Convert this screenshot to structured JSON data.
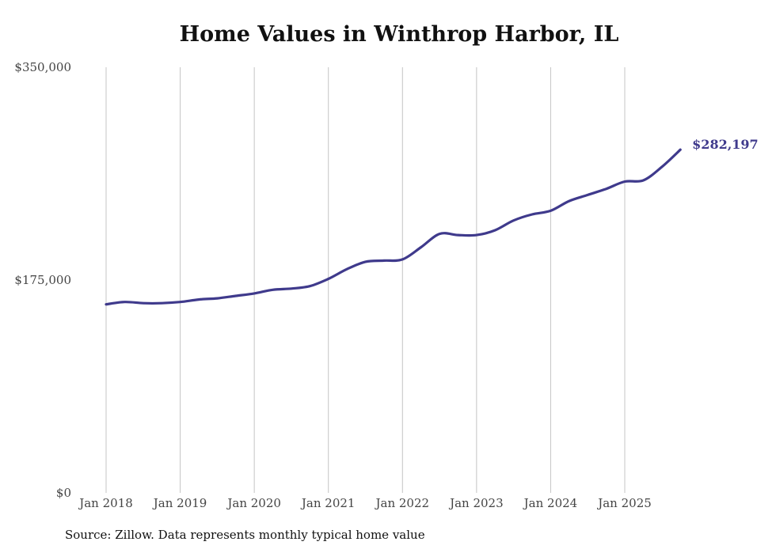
{
  "source_text": "Source: Zillow. Data represents monthly typical home value",
  "colors": {
    "line": "#3f3a8c",
    "grid": "#c4c4c4"
  },
  "chart_data": {
    "type": "line",
    "title": "Home Values in Winthrop Harbor, IL",
    "xlabel": "",
    "ylabel": "",
    "ylim": [
      0,
      350000
    ],
    "y_ticks": [
      0,
      175000,
      350000
    ],
    "y_tick_labels": [
      "$0",
      "$175,000",
      "$350,000"
    ],
    "x_ticks": [
      "2018-01",
      "2019-01",
      "2020-01",
      "2021-01",
      "2022-01",
      "2023-01",
      "2024-01",
      "2025-01"
    ],
    "x_tick_labels": [
      "Jan 2018",
      "Jan 2019",
      "Jan 2020",
      "Jan 2021",
      "Jan 2022",
      "Jan 2023",
      "Jan 2024",
      "Jan 2025"
    ],
    "grid": "vertical at x ticks",
    "end_label": "$282,197",
    "series": [
      {
        "x": [
          "2018-01",
          "2018-04",
          "2018-07",
          "2018-10",
          "2019-01",
          "2019-04",
          "2019-07",
          "2019-10",
          "2020-01",
          "2020-04",
          "2020-07",
          "2020-10",
          "2021-01",
          "2021-04",
          "2021-07",
          "2021-10",
          "2022-01",
          "2022-04",
          "2022-07",
          "2022-10",
          "2023-01",
          "2023-04",
          "2023-07",
          "2023-10",
          "2024-01",
          "2024-04",
          "2024-07",
          "2024-10",
          "2025-01",
          "2025-04",
          "2025-07",
          "2025-10"
        ],
        "y": [
          155000,
          157000,
          156000,
          156000,
          157000,
          159000,
          160000,
          162000,
          164000,
          167000,
          168000,
          170000,
          176000,
          184000,
          190000,
          191000,
          192000,
          202000,
          213000,
          212000,
          212000,
          216000,
          224000,
          229000,
          232000,
          240000,
          245000,
          250000,
          256000,
          257000,
          268000,
          282197
        ]
      }
    ]
  }
}
